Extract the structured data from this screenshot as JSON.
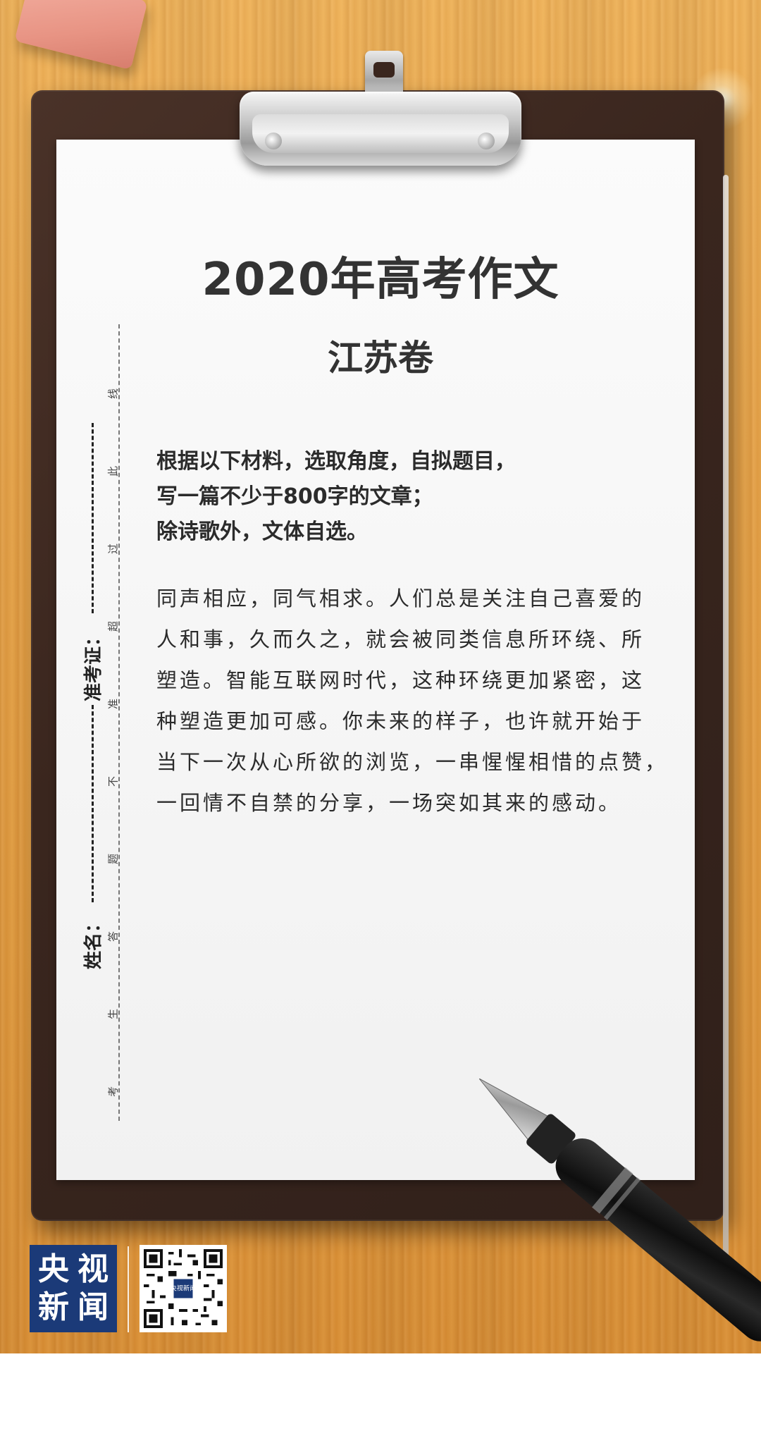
{
  "title": "2020年高考作文",
  "subtitle": "江苏卷",
  "instructions": [
    "根据以下材料，选取角度，自拟题目，",
    "写一篇不少于800字的文章；",
    "除诗歌外，文体自选。"
  ],
  "material": [
    "同声相应，同气相求。人们总是关注自己喜爱的",
    "人和事，久而久之，就会被同类信息所环绕、所",
    "塑造。智能互联网时代，这种环绕更加紧密，这",
    "种塑造更加可感。你未来的样子，也许就开始于",
    "当下一次从心所欲的浏览，一串惺惺相惜的点赞，",
    "一回情不自禁的分享，一场突如其来的感动。"
  ],
  "seal_text": [
    "线",
    "此",
    "过",
    "超",
    "准",
    "不",
    "题",
    "答",
    "生",
    "考"
  ],
  "exam_id_label": "准考证：",
  "name_label": "姓名：",
  "brand": {
    "logo_chars": [
      "央",
      "视",
      "新",
      "闻"
    ],
    "qr_badge": "央视新闻",
    "color": "#1b3a78"
  },
  "icons": {
    "pen": "fountain-pen",
    "clip": "clipboard-clip",
    "eraser": "eraser"
  }
}
